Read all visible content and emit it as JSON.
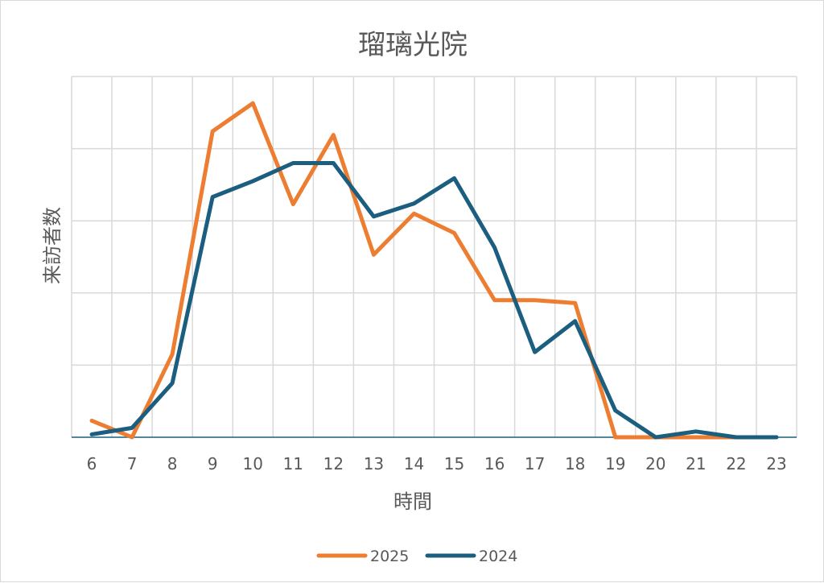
{
  "chart_data": {
    "type": "line",
    "title": "瑠璃光院",
    "xlabel": "時間",
    "ylabel": "来訪者数",
    "categories": [
      "6",
      "7",
      "8",
      "9",
      "10",
      "11",
      "12",
      "13",
      "14",
      "15",
      "16",
      "17",
      "18",
      "19",
      "20",
      "21",
      "22",
      "23"
    ],
    "ylim": [
      0,
      5
    ],
    "y_tick_labels_shown": false,
    "grid": true,
    "legend_position": "bottom",
    "series": [
      {
        "name": "2025",
        "color": "#ed7d31",
        "values": [
          0.23,
          0.0,
          1.15,
          4.24,
          4.63,
          3.23,
          4.19,
          2.53,
          3.1,
          2.83,
          1.9,
          1.9,
          1.86,
          0.0,
          0.0,
          0.0,
          0.0,
          0.0
        ]
      },
      {
        "name": "2024",
        "color": "#1b5e7f",
        "values": [
          0.04,
          0.13,
          0.75,
          3.33,
          3.55,
          3.8,
          3.8,
          3.06,
          3.24,
          3.59,
          2.63,
          1.18,
          1.61,
          0.37,
          0.0,
          0.08,
          0.0,
          0.0
        ]
      }
    ]
  }
}
